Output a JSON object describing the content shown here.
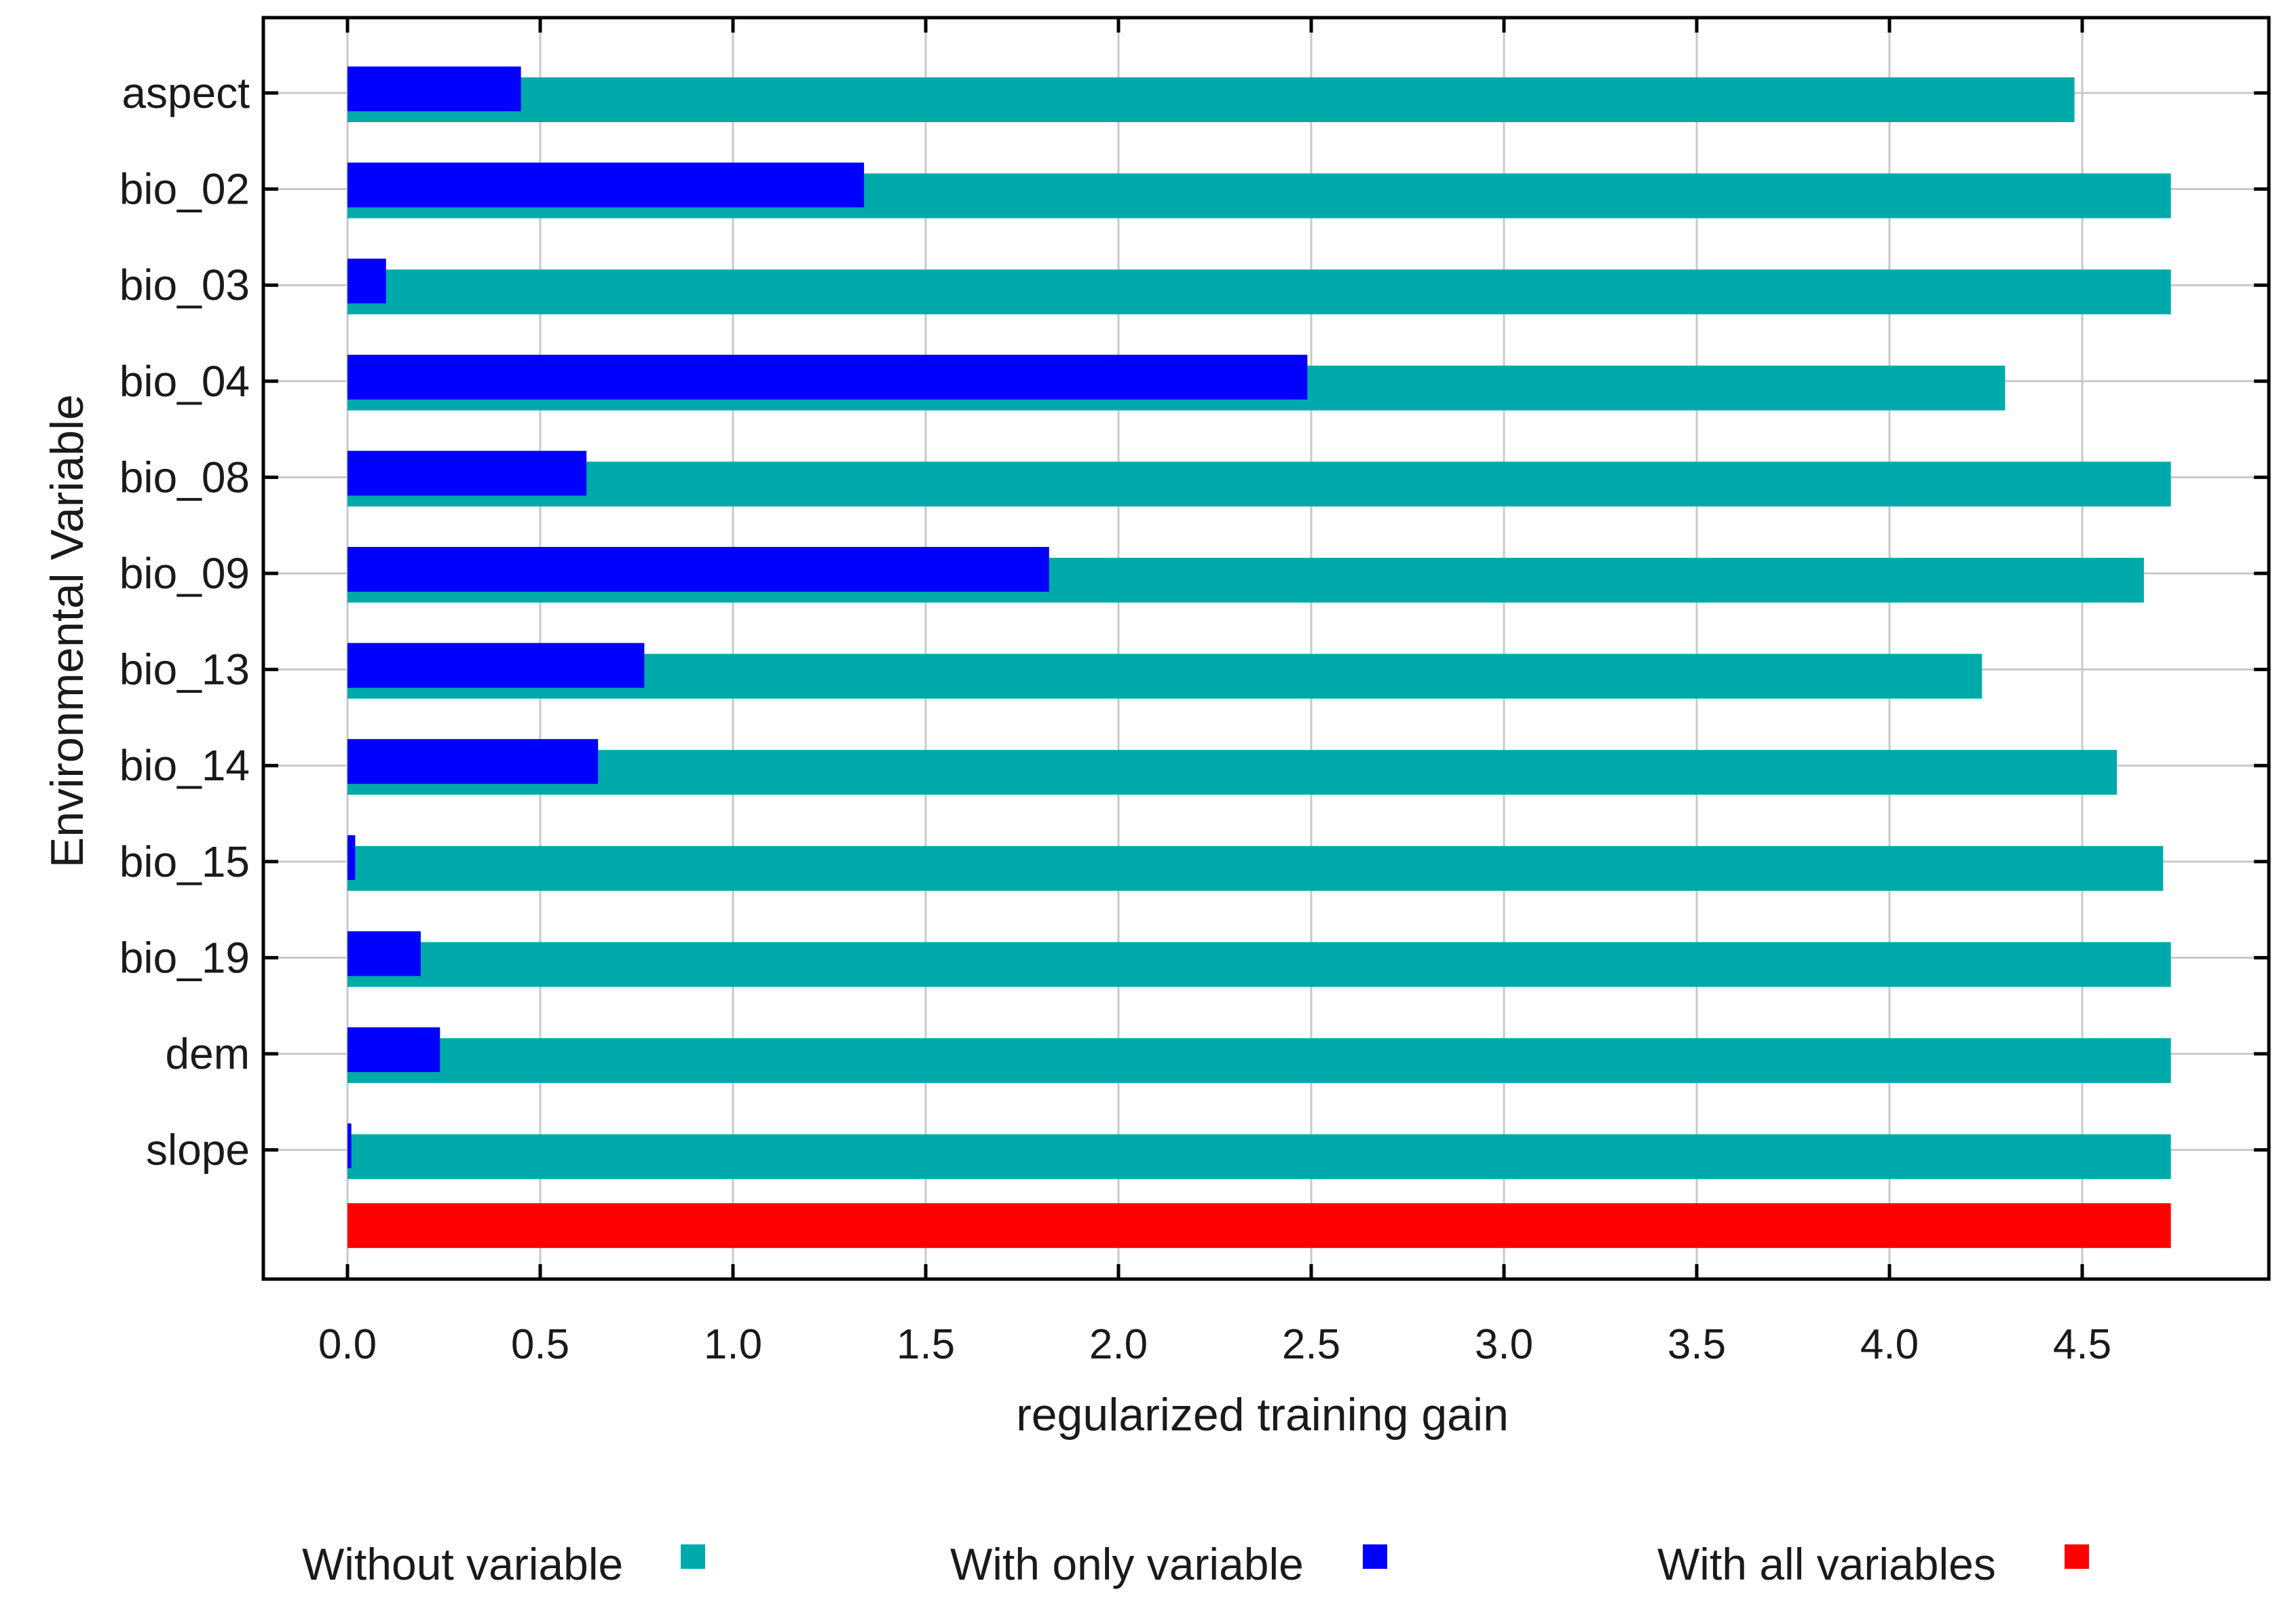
{
  "chart_data": {
    "type": "bar",
    "orientation": "horizontal",
    "xlabel": "regularized training gain",
    "ylabel": "Environmental Variable",
    "xlim": [
      -0.22,
      4.98
    ],
    "xticks": [
      0.0,
      0.5,
      1.0,
      1.5,
      2.0,
      2.5,
      3.0,
      3.5,
      4.0,
      4.5
    ],
    "xtick_labels": [
      "0.0",
      "0.5",
      "1.0",
      "1.5",
      "2.0",
      "2.5",
      "3.0",
      "3.5",
      "4.0",
      "4.5"
    ],
    "grid": true,
    "categories": [
      "aspect",
      "bio_02",
      "bio_03",
      "bio_04",
      "bio_08",
      "bio_09",
      "bio_13",
      "bio_14",
      "bio_15",
      "bio_19",
      "dem",
      "slope"
    ],
    "series": [
      {
        "name": "Without variable",
        "color": "#00aaaa",
        "values": [
          4.48,
          4.73,
          4.73,
          4.3,
          4.73,
          4.66,
          4.24,
          4.59,
          4.71,
          4.73,
          4.73,
          4.73
        ]
      },
      {
        "name": "With only variable",
        "color": "#0000ff",
        "values": [
          0.45,
          1.34,
          0.1,
          2.49,
          0.62,
          1.82,
          0.77,
          0.65,
          0.02,
          0.19,
          0.24,
          0.01
        ]
      }
    ],
    "all_variables": {
      "name": "With all variables",
      "color": "#ff0000",
      "value": 4.73
    },
    "legend": {
      "position": "bottom",
      "items": [
        {
          "label": "Without variable",
          "color": "#00aaaa"
        },
        {
          "label": "With only variable",
          "color": "#0000ff"
        },
        {
          "label": "With all variables",
          "color": "#ff0000"
        }
      ]
    }
  }
}
